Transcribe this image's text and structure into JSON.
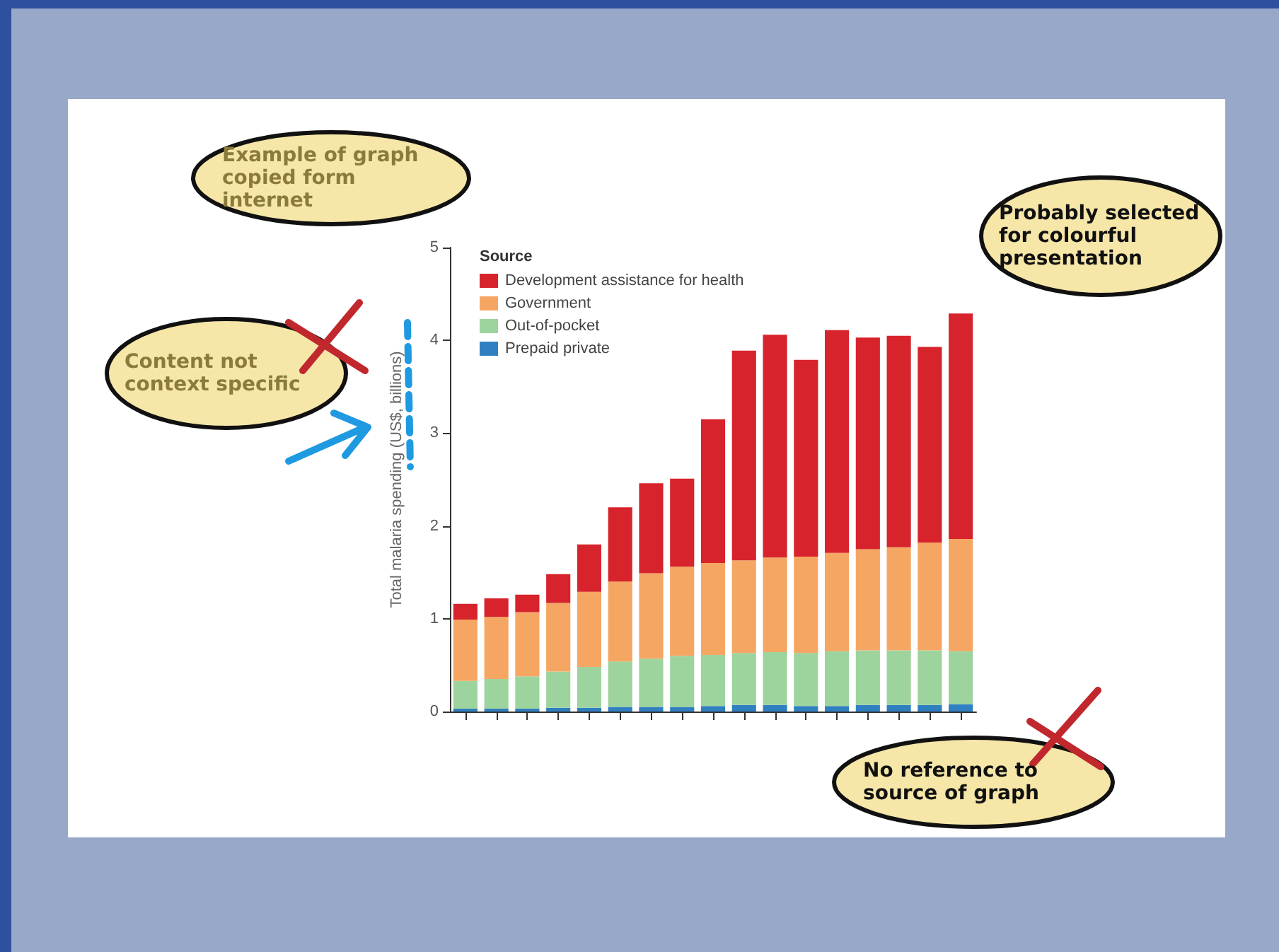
{
  "chart_data": {
    "type": "bar",
    "stacked": true,
    "categories": [
      null,
      null,
      null,
      null,
      null,
      null,
      null,
      null,
      null,
      null,
      null,
      null,
      null,
      null,
      null,
      null,
      null
    ],
    "series": [
      {
        "name": "Prepaid private",
        "color": "#2f7fc1",
        "values": [
          0.03,
          0.03,
          0.03,
          0.04,
          0.04,
          0.05,
          0.05,
          0.05,
          0.06,
          0.07,
          0.07,
          0.06,
          0.06,
          0.07,
          0.07,
          0.07,
          0.08
        ]
      },
      {
        "name": "Out-of-pocket",
        "color": "#9dd49e",
        "values": [
          0.3,
          0.32,
          0.35,
          0.39,
          0.44,
          0.49,
          0.52,
          0.55,
          0.55,
          0.56,
          0.57,
          0.57,
          0.59,
          0.59,
          0.59,
          0.59,
          0.57
        ]
      },
      {
        "name": "Government",
        "color": "#f5a662",
        "values": [
          0.66,
          0.67,
          0.69,
          0.74,
          0.81,
          0.86,
          0.92,
          0.96,
          0.99,
          1.0,
          1.02,
          1.04,
          1.06,
          1.09,
          1.11,
          1.16,
          1.21
        ]
      },
      {
        "name": "Development assistance for health",
        "color": "#d7242c",
        "values": [
          0.17,
          0.2,
          0.19,
          0.31,
          0.51,
          0.8,
          0.97,
          0.95,
          1.55,
          2.26,
          2.4,
          2.12,
          2.4,
          2.28,
          2.28,
          2.11,
          2.43
        ]
      }
    ],
    "ylabel": "Total malaria spending (US$, billions)",
    "legend_title": "Source",
    "ylim": [
      0,
      5
    ],
    "yticks": [
      0,
      1,
      2,
      3,
      4,
      5
    ],
    "legend": "top left",
    "tick_labels": "y",
    "annotations": [
      "Example of graph copied form internet",
      "Content not context specific",
      "Probably selected for colourful presentation",
      "No reference to source of graph"
    ]
  }
}
